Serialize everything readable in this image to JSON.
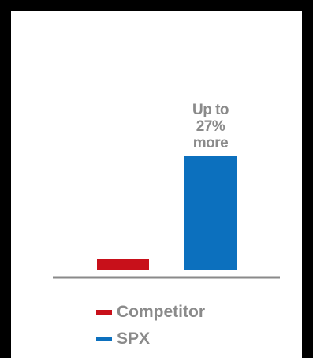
{
  "chart_data": {
    "type": "bar",
    "categories": [
      "Competitor",
      "SPX"
    ],
    "values": [
      1,
      11
    ],
    "colors": {
      "Competitor": "#c8101a",
      "SPX": "#0c70be",
      "axis": "#8a8a8a",
      "text": "#8a8a8a"
    },
    "annotation": [
      "Up to",
      "27%",
      "more"
    ],
    "legend": [
      {
        "label": "Competitor",
        "color": "#c8101a"
      },
      {
        "label": "SPX",
        "color": "#0c70be"
      }
    ],
    "legend_position": "bottom",
    "ylim": [
      0,
      11
    ],
    "grid": false,
    "title": "",
    "xlabel": "",
    "ylabel": ""
  }
}
